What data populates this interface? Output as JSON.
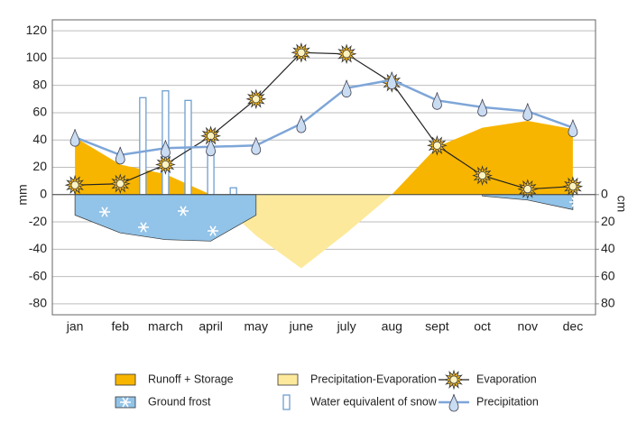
{
  "chart_data": {
    "type": "combo",
    "y_label": "mm",
    "y2_label": "cm",
    "categories": [
      "jan",
      "feb",
      "march",
      "april",
      "may",
      "june",
      "july",
      "aug",
      "sept",
      "oct",
      "nov",
      "dec"
    ],
    "ylim": [
      -88,
      128
    ],
    "yticks": [
      -80,
      -60,
      -40,
      -20,
      0,
      20,
      40,
      60,
      80,
      100,
      120
    ],
    "y2lim": [
      88,
      -128
    ],
    "y2ticks": [
      0,
      20,
      40,
      60,
      80
    ],
    "grid": true,
    "legend": "bottom",
    "series": [
      {
        "name": "Runoff + Storage",
        "type": "area",
        "color": "#f7b500",
        "values": [
          42,
          22,
          15,
          0,
          null,
          null,
          null,
          0,
          35,
          49,
          54,
          48
        ]
      },
      {
        "name": "Precipitation-Evaporation",
        "type": "area",
        "color": "#fde99b",
        "values": [
          null,
          null,
          null,
          0,
          -30,
          -54,
          -28,
          0,
          null,
          null,
          null,
          null
        ]
      },
      {
        "name": "Ground frost",
        "type": "area",
        "axis": "y2",
        "color": "#92c3e8",
        "values": [
          15,
          28,
          33,
          34,
          15,
          null,
          null,
          null,
          null,
          1,
          4,
          11
        ]
      },
      {
        "name": "Water equivalent of snow",
        "type": "bar",
        "color": "#6f9fd0",
        "x": [
          1.5,
          2,
          2.5,
          3,
          3.5
        ],
        "values": [
          71,
          76,
          69,
          35,
          5
        ]
      },
      {
        "name": "Evaporation",
        "type": "line",
        "marker": "sun",
        "color": "#222222",
        "values": [
          7,
          8,
          22,
          43,
          70,
          104,
          103,
          82,
          36,
          14,
          4,
          6
        ]
      },
      {
        "name": "Precipitation",
        "type": "line",
        "marker": "drop",
        "color": "#7ea6d8",
        "values": [
          42,
          29,
          34,
          35,
          36,
          52,
          78,
          84,
          69,
          64,
          61,
          49
        ]
      }
    ]
  }
}
